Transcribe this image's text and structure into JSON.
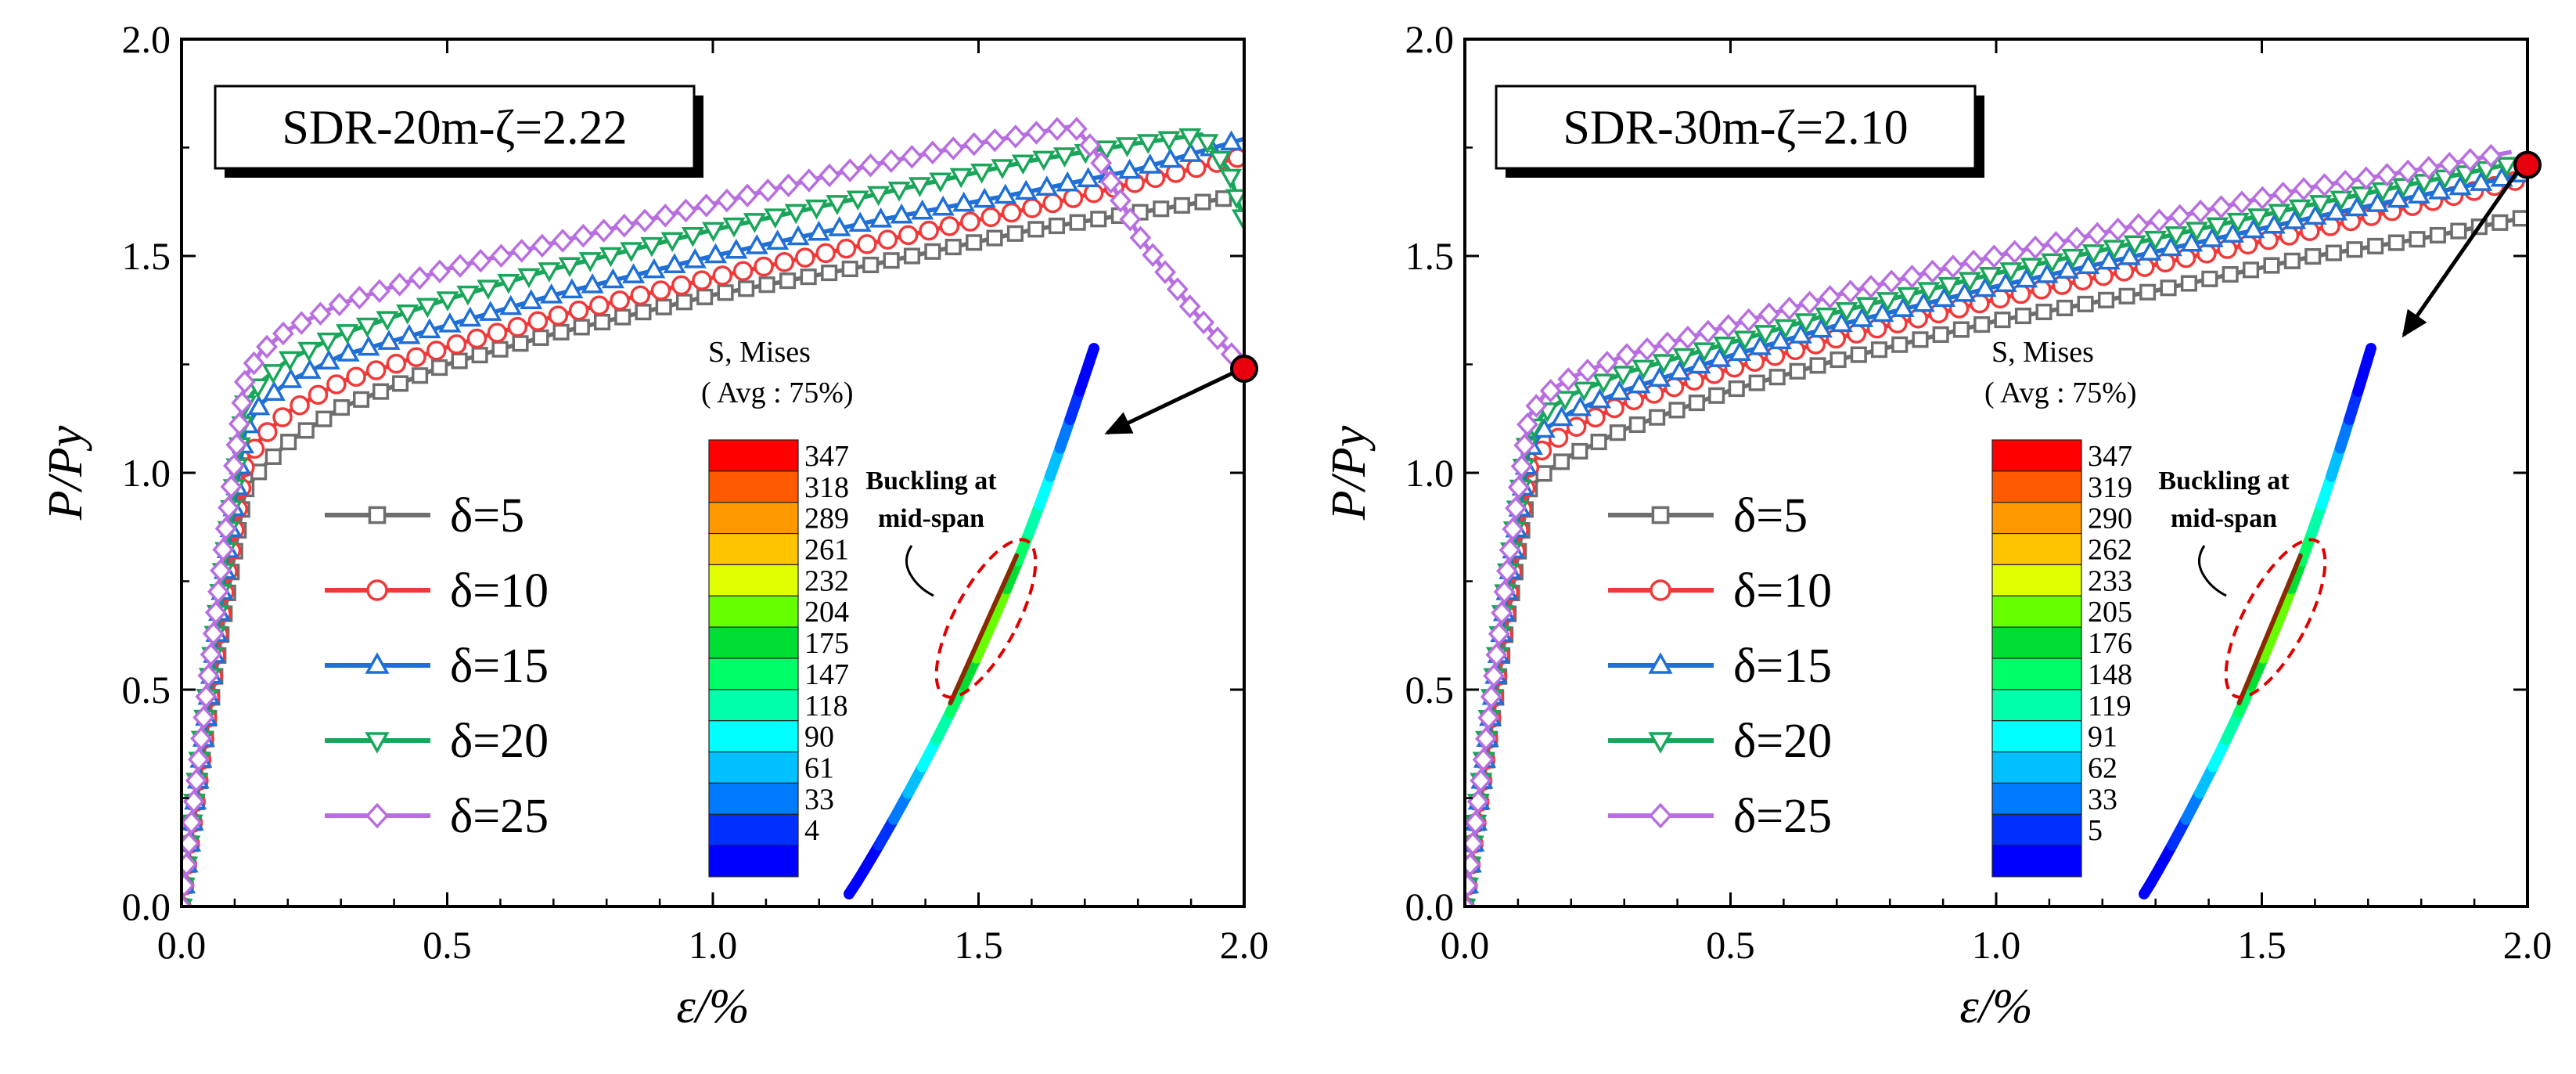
{
  "chart_data": [
    {
      "type": "line",
      "title": "SDR-20m-ζ=2.22",
      "xlabel": "ε/%",
      "ylabel": "P/Py",
      "xlim": [
        0,
        2.0
      ],
      "ylim": [
        0,
        2.0
      ],
      "xticks": [
        "0.0",
        "0.5",
        "1.0",
        "1.5",
        "2.0"
      ],
      "yticks": [
        "0.0",
        "0.5",
        "1.0",
        "1.5",
        "2.0"
      ],
      "legend_position": "left-middle",
      "series": [
        {
          "name": "δ=5",
          "color": "#6e6e6e",
          "marker": "square",
          "points": [
            [
              0,
              0
            ],
            [
              0.04,
              0.34
            ],
            [
              0.08,
              0.67
            ],
            [
              0.12,
              0.96
            ],
            [
              0.15,
              1.01
            ],
            [
              0.2,
              1.07
            ],
            [
              0.3,
              1.15
            ],
            [
              0.5,
              1.25
            ],
            [
              0.7,
              1.32
            ],
            [
              1.0,
              1.41
            ],
            [
              1.3,
              1.48
            ],
            [
              1.6,
              1.56
            ],
            [
              1.8,
              1.6
            ],
            [
              2.0,
              1.64
            ]
          ]
        },
        {
          "name": "δ=10",
          "color": "#f03a3a",
          "marker": "circle",
          "points": [
            [
              0,
              0
            ],
            [
              0.04,
              0.36
            ],
            [
              0.08,
              0.72
            ],
            [
              0.12,
              1.02
            ],
            [
              0.15,
              1.08
            ],
            [
              0.2,
              1.14
            ],
            [
              0.3,
              1.21
            ],
            [
              0.5,
              1.29
            ],
            [
              0.7,
              1.36
            ],
            [
              1.0,
              1.45
            ],
            [
              1.3,
              1.53
            ],
            [
              1.6,
              1.61
            ],
            [
              1.8,
              1.67
            ],
            [
              2.0,
              1.73
            ]
          ]
        },
        {
          "name": "δ=15",
          "color": "#1f6fd6",
          "marker": "triangle-up",
          "points": [
            [
              0,
              0
            ],
            [
              0.04,
              0.37
            ],
            [
              0.08,
              0.76
            ],
            [
              0.12,
              1.1
            ],
            [
              0.15,
              1.16
            ],
            [
              0.2,
              1.21
            ],
            [
              0.3,
              1.27
            ],
            [
              0.5,
              1.34
            ],
            [
              0.7,
              1.41
            ],
            [
              1.0,
              1.5
            ],
            [
              1.3,
              1.58
            ],
            [
              1.6,
              1.65
            ],
            [
              1.8,
              1.7
            ],
            [
              2.0,
              1.77
            ]
          ]
        },
        {
          "name": "δ=20",
          "color": "#1aa65a",
          "marker": "triangle-down",
          "points": [
            [
              0,
              0
            ],
            [
              0.04,
              0.4
            ],
            [
              0.08,
              0.79
            ],
            [
              0.12,
              1.16
            ],
            [
              0.15,
              1.21
            ],
            [
              0.2,
              1.26
            ],
            [
              0.3,
              1.32
            ],
            [
              0.5,
              1.4
            ],
            [
              0.7,
              1.47
            ],
            [
              1.0,
              1.56
            ],
            [
              1.3,
              1.64
            ],
            [
              1.6,
              1.72
            ],
            [
              1.8,
              1.76
            ],
            [
              1.92,
              1.78
            ],
            [
              1.97,
              1.7
            ],
            [
              2.0,
              1.58
            ]
          ]
        },
        {
          "name": "δ=25",
          "color": "#b86ee0",
          "marker": "diamond",
          "points": [
            [
              0,
              0
            ],
            [
              0.04,
              0.42
            ],
            [
              0.08,
              0.84
            ],
            [
              0.12,
              1.22
            ],
            [
              0.15,
              1.28
            ],
            [
              0.2,
              1.33
            ],
            [
              0.3,
              1.39
            ],
            [
              0.5,
              1.47
            ],
            [
              0.7,
              1.53
            ],
            [
              1.0,
              1.62
            ],
            [
              1.3,
              1.71
            ],
            [
              1.5,
              1.76
            ],
            [
              1.68,
              1.8
            ],
            [
              1.72,
              1.74
            ],
            [
              1.8,
              1.55
            ],
            [
              1.9,
              1.38
            ],
            [
              2.0,
              1.24
            ]
          ]
        }
      ],
      "failure_point": [
        2.0,
        1.24
      ],
      "contour_legend": {
        "title": "S, Mises",
        "subtitle": "( Avg : 75%)",
        "values": [
          "347",
          "318",
          "289",
          "261",
          "232",
          "204",
          "175",
          "147",
          "118",
          "90",
          "61",
          "33",
          "4"
        ]
      },
      "annotation": [
        "Buckling at",
        "mid-span"
      ]
    },
    {
      "type": "line",
      "title": "SDR-30m-ζ=2.10",
      "xlabel": "ε/%",
      "ylabel": "P/Py",
      "xlim": [
        0,
        2.0
      ],
      "ylim": [
        0,
        2.0
      ],
      "xticks": [
        "0.0",
        "0.5",
        "1.0",
        "1.5",
        "2.0"
      ],
      "yticks": [
        "0.0",
        "0.5",
        "1.0",
        "1.5",
        "2.0"
      ],
      "legend_position": "left-middle",
      "series": [
        {
          "name": "δ=5",
          "color": "#6e6e6e",
          "marker": "square",
          "points": [
            [
              0,
              0
            ],
            [
              0.04,
              0.33
            ],
            [
              0.08,
              0.66
            ],
            [
              0.12,
              0.96
            ],
            [
              0.15,
              1.0
            ],
            [
              0.2,
              1.04
            ],
            [
              0.3,
              1.1
            ],
            [
              0.5,
              1.19
            ],
            [
              0.7,
              1.26
            ],
            [
              1.0,
              1.35
            ],
            [
              1.3,
              1.42
            ],
            [
              1.6,
              1.5
            ],
            [
              1.8,
              1.54
            ],
            [
              2.0,
              1.59
            ]
          ]
        },
        {
          "name": "δ=10",
          "color": "#f03a3a",
          "marker": "circle",
          "points": [
            [
              0,
              0
            ],
            [
              0.04,
              0.35
            ],
            [
              0.08,
              0.7
            ],
            [
              0.12,
              1.01
            ],
            [
              0.15,
              1.06
            ],
            [
              0.2,
              1.1
            ],
            [
              0.3,
              1.16
            ],
            [
              0.5,
              1.24
            ],
            [
              0.7,
              1.31
            ],
            [
              1.0,
              1.4
            ],
            [
              1.3,
              1.48
            ],
            [
              1.6,
              1.56
            ],
            [
              1.8,
              1.62
            ],
            [
              2.0,
              1.68
            ]
          ]
        },
        {
          "name": "δ=15",
          "color": "#1f6fd6",
          "marker": "triangle-up",
          "points": [
            [
              0,
              0
            ],
            [
              0.04,
              0.36
            ],
            [
              0.08,
              0.73
            ],
            [
              0.12,
              1.05
            ],
            [
              0.15,
              1.1
            ],
            [
              0.2,
              1.14
            ],
            [
              0.3,
              1.19
            ],
            [
              0.5,
              1.27
            ],
            [
              0.7,
              1.34
            ],
            [
              1.0,
              1.43
            ],
            [
              1.3,
              1.51
            ],
            [
              1.6,
              1.59
            ],
            [
              1.8,
              1.64
            ],
            [
              2.0,
              1.69
            ]
          ]
        },
        {
          "name": "δ=20",
          "color": "#1aa65a",
          "marker": "triangle-down",
          "points": [
            [
              0,
              0
            ],
            [
              0.04,
              0.38
            ],
            [
              0.08,
              0.76
            ],
            [
              0.12,
              1.09
            ],
            [
              0.15,
              1.14
            ],
            [
              0.2,
              1.18
            ],
            [
              0.3,
              1.23
            ],
            [
              0.5,
              1.3
            ],
            [
              0.7,
              1.37
            ],
            [
              1.0,
              1.46
            ],
            [
              1.3,
              1.54
            ],
            [
              1.6,
              1.62
            ],
            [
              1.8,
              1.67
            ],
            [
              2.0,
              1.72
            ]
          ]
        },
        {
          "name": "δ=25",
          "color": "#b86ee0",
          "marker": "diamond",
          "points": [
            [
              0,
              0
            ],
            [
              0.04,
              0.39
            ],
            [
              0.08,
              0.78
            ],
            [
              0.12,
              1.13
            ],
            [
              0.15,
              1.18
            ],
            [
              0.2,
              1.22
            ],
            [
              0.3,
              1.27
            ],
            [
              0.5,
              1.34
            ],
            [
              0.7,
              1.41
            ],
            [
              1.0,
              1.5
            ],
            [
              1.3,
              1.58
            ],
            [
              1.6,
              1.66
            ],
            [
              1.8,
              1.7
            ],
            [
              1.97,
              1.74
            ]
          ]
        }
      ],
      "failure_point": [
        2.0,
        1.71
      ],
      "contour_legend": {
        "title": "S, Mises",
        "subtitle": "( Avg : 75%)",
        "values": [
          "347",
          "319",
          "290",
          "262",
          "233",
          "205",
          "176",
          "148",
          "119",
          "91",
          "62",
          "33",
          "5"
        ]
      },
      "annotation": [
        "Buckling at",
        "mid-span"
      ]
    }
  ],
  "colormap": [
    "#ff0000",
    "#ff5a00",
    "#ff9900",
    "#ffc400",
    "#e0ff00",
    "#66ff00",
    "#00dd33",
    "#00ff66",
    "#00ffaa",
    "#00ffff",
    "#00c0ff",
    "#007bff",
    "#0030ff",
    "#0000ff"
  ]
}
